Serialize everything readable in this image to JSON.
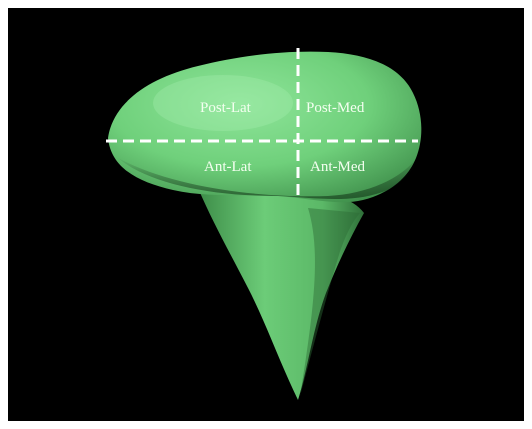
{
  "figure": {
    "background_color": "#000000",
    "model_color": "#6fd07b",
    "divider_color": "#ffffff",
    "quadrants": {
      "post_lat": "Post-Lat",
      "post_med": "Post-Med",
      "ant_lat": "Ant-Lat",
      "ant_med": "Ant-Med"
    }
  }
}
